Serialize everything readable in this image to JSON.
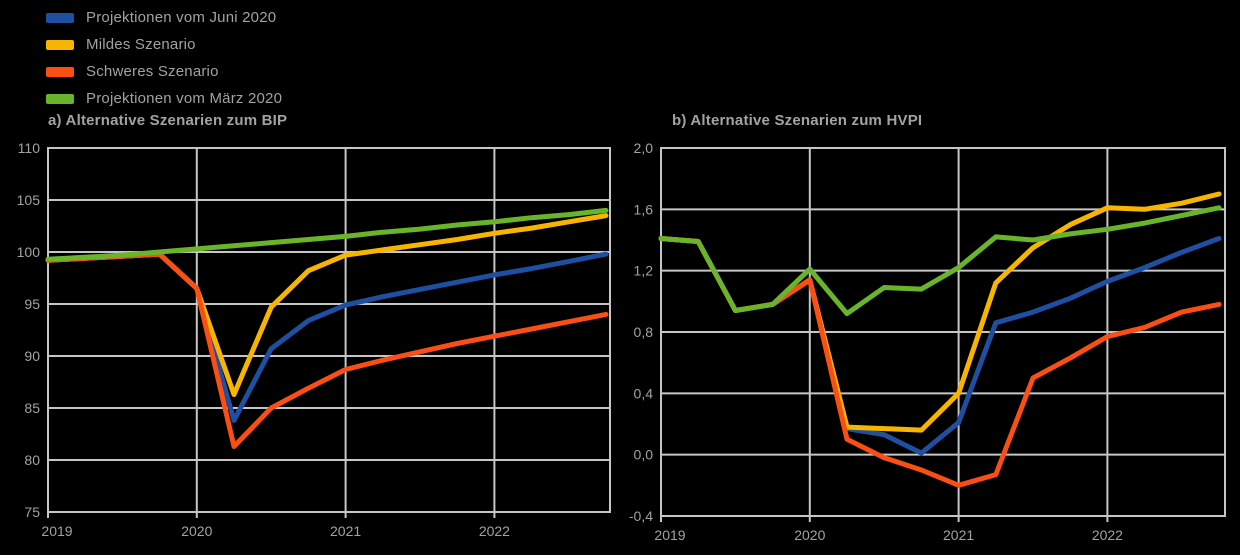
{
  "legend": {
    "items": [
      {
        "label": "Projektionen vom Juni 2020",
        "color": "#1e4fa1"
      },
      {
        "label": "Mildes Szenario",
        "color": "#f8b500"
      },
      {
        "label": "Schweres Szenario",
        "color": "#f94e14"
      },
      {
        "label": "Projektionen vom März 2020",
        "color": "#69b42a"
      }
    ]
  },
  "chart_data": [
    {
      "type": "line",
      "title": "a) Alternative Szenarien zum BIP",
      "categories": [
        "2019Q1",
        "2019Q2",
        "2019Q3",
        "2019Q4",
        "2020Q1",
        "2020Q2",
        "2020Q3",
        "2020Q4",
        "2021Q1",
        "2021Q2",
        "2021Q3",
        "2021Q4",
        "2022Q1",
        "2022Q2",
        "2022Q3",
        "2022Q4"
      ],
      "x_ticks": [
        {
          "label": "2019",
          "q": 0
        },
        {
          "label": "2020",
          "q": 4
        },
        {
          "label": "2021",
          "q": 8
        },
        {
          "label": "2022",
          "q": 12
        }
      ],
      "y_ticks": [
        {
          "label": "110",
          "value": 110
        },
        {
          "label": "105",
          "value": 105
        },
        {
          "label": "100",
          "value": 100
        },
        {
          "label": "95",
          "value": 95
        },
        {
          "label": "90",
          "value": 90
        },
        {
          "label": "85",
          "value": 85
        },
        {
          "label": "80",
          "value": 80
        },
        {
          "label": "75",
          "value": 75
        }
      ],
      "ylim": [
        75,
        110
      ],
      "grid": true,
      "legend_position": "top-left",
      "series": [
        {
          "name": "Projektionen vom Juni 2020",
          "color": "#1e4fa1",
          "values": [
            99.2,
            99.4,
            99.6,
            99.8,
            96.5,
            83.8,
            90.7,
            93.4,
            94.9,
            95.7,
            96.4,
            97.1,
            97.8,
            98.4,
            99.1,
            99.8
          ]
        },
        {
          "name": "Mildes Szenario",
          "color": "#f8b500",
          "values": [
            99.2,
            99.4,
            99.6,
            99.8,
            96.5,
            86.3,
            94.7,
            98.2,
            99.7,
            100.2,
            100.7,
            101.2,
            101.8,
            102.3,
            102.9,
            103.5
          ]
        },
        {
          "name": "Schweres Szenario",
          "color": "#f94e14",
          "values": [
            99.2,
            99.4,
            99.6,
            99.8,
            96.5,
            81.3,
            85.0,
            86.9,
            88.7,
            89.6,
            90.4,
            91.2,
            91.9,
            92.6,
            93.3,
            94.0
          ]
        },
        {
          "name": "Projektionen vom März 2020",
          "color": "#69b42a",
          "values": [
            99.3,
            99.5,
            99.7,
            100.0,
            100.3,
            100.6,
            100.9,
            101.2,
            101.5,
            101.9,
            102.2,
            102.6,
            102.9,
            103.3,
            103.6,
            104.0
          ]
        }
      ]
    },
    {
      "type": "line",
      "title": "b) Alternative Szenarien zum HVPI",
      "categories": [
        "2019Q1",
        "2019Q2",
        "2019Q3",
        "2019Q4",
        "2020Q1",
        "2020Q2",
        "2020Q3",
        "2020Q4",
        "2021Q1",
        "2021Q2",
        "2021Q3",
        "2021Q4",
        "2022Q1",
        "2022Q2",
        "2022Q3",
        "2022Q4"
      ],
      "x_ticks": [
        {
          "label": "2019",
          "q": 0
        },
        {
          "label": "2020",
          "q": 4
        },
        {
          "label": "2021",
          "q": 8
        },
        {
          "label": "2022",
          "q": 12
        }
      ],
      "y_ticks": [
        {
          "label": "2,0",
          "value": 2.0
        },
        {
          "label": "1,6",
          "value": 1.6
        },
        {
          "label": "1,2",
          "value": 1.2
        },
        {
          "label": "0,8",
          "value": 0.8
        },
        {
          "label": "0,4",
          "value": 0.4
        },
        {
          "label": "0,0",
          "value": 0.0
        },
        {
          "label": "-0,4",
          "value": -0.4
        }
      ],
      "ylim": [
        -0.4,
        2.0
      ],
      "grid": true,
      "legend_position": "top-left",
      "series": [
        {
          "name": "Projektionen vom Juni 2020",
          "color": "#1e4fa1",
          "values": [
            1.41,
            1.39,
            0.94,
            0.98,
            1.14,
            0.17,
            0.13,
            0.01,
            0.21,
            0.86,
            0.93,
            1.02,
            1.13,
            1.22,
            1.32,
            1.41
          ]
        },
        {
          "name": "Mildes Szenario",
          "color": "#f8b500",
          "values": [
            1.41,
            1.39,
            0.94,
            0.98,
            1.14,
            0.18,
            0.17,
            0.16,
            0.4,
            1.12,
            1.35,
            1.5,
            1.61,
            1.6,
            1.64,
            1.7
          ]
        },
        {
          "name": "Schweres Szenario",
          "color": "#f94e14",
          "values": [
            1.41,
            1.39,
            0.94,
            0.98,
            1.14,
            0.1,
            -0.02,
            -0.1,
            -0.2,
            -0.13,
            0.5,
            0.63,
            0.77,
            0.83,
            0.93,
            0.98
          ]
        },
        {
          "name": "Projektionen vom März 2020",
          "color": "#69b42a",
          "values": [
            1.41,
            1.39,
            0.94,
            0.98,
            1.21,
            0.92,
            1.09,
            1.08,
            1.22,
            1.42,
            1.4,
            1.44,
            1.47,
            1.51,
            1.56,
            1.61
          ]
        }
      ]
    }
  ]
}
